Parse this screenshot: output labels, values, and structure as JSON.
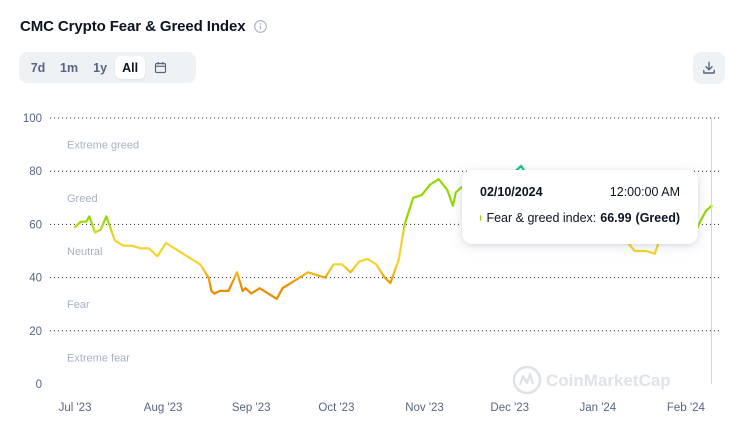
{
  "header": {
    "title": "CMC Crypto Fear & Greed Index",
    "info_icon": "info-icon"
  },
  "range_buttons": [
    {
      "label": "7d",
      "active": false
    },
    {
      "label": "1m",
      "active": false
    },
    {
      "label": "1y",
      "active": false
    },
    {
      "label": "All",
      "active": true
    }
  ],
  "calendar_icon": "calendar-icon",
  "download_icon": "download-icon",
  "watermark": "CoinMarketCap",
  "colors": {
    "extreme_fear": "#ea3943",
    "fear": "#ea8c00",
    "neutral": "#f3d42f",
    "greed": "#93d900",
    "extreme_greed": "#16c784",
    "axis_text": "#58667e",
    "zone_text": "#a6b0c3"
  },
  "tooltip": {
    "date": "02/10/2024",
    "time": "12:00:00 AM",
    "label": "Fear & greed index:",
    "value": "66.99",
    "classification": "(Greed)"
  },
  "chart_data": {
    "type": "line",
    "title": "CMC Crypto Fear & Greed Index",
    "xlabel": "",
    "ylabel": "",
    "ylim": [
      0,
      100
    ],
    "yticks": [
      0,
      20,
      40,
      60,
      80,
      100
    ],
    "grid": true,
    "x_tick_labels": [
      "Jul '23",
      "Aug '23",
      "Sep '23",
      "Oct '23",
      "Nov '23",
      "Dec '23",
      "Jan '24",
      "Feb '24"
    ],
    "x_tick_dates": [
      "2023-07-01",
      "2023-08-01",
      "2023-09-01",
      "2023-10-01",
      "2023-11-01",
      "2023-12-01",
      "2024-01-01",
      "2024-02-01"
    ],
    "zones": [
      {
        "label": "Extreme greed",
        "range": [
          80,
          100
        ]
      },
      {
        "label": "Greed",
        "range": [
          60,
          80
        ]
      },
      {
        "label": "Neutral",
        "range": [
          40,
          60
        ]
      },
      {
        "label": "Fear",
        "range": [
          20,
          40
        ]
      },
      {
        "label": "Extreme fear",
        "range": [
          0,
          20
        ]
      }
    ],
    "series": [
      {
        "x": [
          "2023-07-01",
          "2023-07-03",
          "2023-07-05",
          "2023-07-06",
          "2023-07-08",
          "2023-07-10",
          "2023-07-12",
          "2023-07-14",
          "2023-07-15",
          "2023-07-18",
          "2023-07-21",
          "2023-07-24",
          "2023-07-27",
          "2023-07-30",
          "2023-08-02",
          "2023-08-05",
          "2023-08-08",
          "2023-08-11",
          "2023-08-14",
          "2023-08-17",
          "2023-08-18",
          "2023-08-19",
          "2023-08-21",
          "2023-08-24",
          "2023-08-27",
          "2023-08-29",
          "2023-08-30",
          "2023-09-01",
          "2023-09-04",
          "2023-09-07",
          "2023-09-10",
          "2023-09-12",
          "2023-09-15",
          "2023-09-18",
          "2023-09-21",
          "2023-09-24",
          "2023-09-27",
          "2023-09-30",
          "2023-10-03",
          "2023-10-06",
          "2023-10-09",
          "2023-10-12",
          "2023-10-15",
          "2023-10-18",
          "2023-10-20",
          "2023-10-21",
          "2023-10-23",
          "2023-10-25",
          "2023-10-28",
          "2023-10-31",
          "2023-11-03",
          "2023-11-06",
          "2023-11-09",
          "2023-11-11",
          "2023-11-12",
          "2023-11-14",
          "2023-11-15",
          "2023-11-20",
          "2023-11-25",
          "2023-11-30",
          "2023-12-03",
          "2023-12-05",
          "2023-12-08",
          "2023-12-12",
          "2023-12-16",
          "2023-12-20",
          "2023-12-24",
          "2023-12-28",
          "2024-01-02",
          "2024-01-06",
          "2024-01-10",
          "2024-01-14",
          "2024-01-18",
          "2024-01-21",
          "2024-01-23",
          "2024-01-26",
          "2024-01-29",
          "2024-02-01",
          "2024-02-04",
          "2024-02-06",
          "2024-02-08",
          "2024-02-10"
        ],
        "y": [
          59,
          61,
          61,
          63,
          57,
          58,
          63,
          57,
          54,
          52,
          52,
          51,
          51,
          48,
          53,
          51,
          49,
          47,
          45,
          40,
          35,
          34,
          35,
          35,
          42,
          35,
          36,
          34,
          36,
          34,
          32,
          36,
          38,
          40,
          42,
          41,
          40,
          45,
          45,
          42,
          46,
          47,
          45,
          40,
          38,
          41,
          47,
          60,
          70,
          71,
          75,
          77,
          73,
          67,
          72,
          74,
          73,
          75,
          75,
          76,
          80,
          82,
          77,
          72,
          73,
          72,
          70,
          71,
          70,
          60,
          55,
          50,
          50,
          49,
          55,
          59,
          60,
          55,
          56,
          61,
          65,
          66.99
        ]
      }
    ]
  }
}
